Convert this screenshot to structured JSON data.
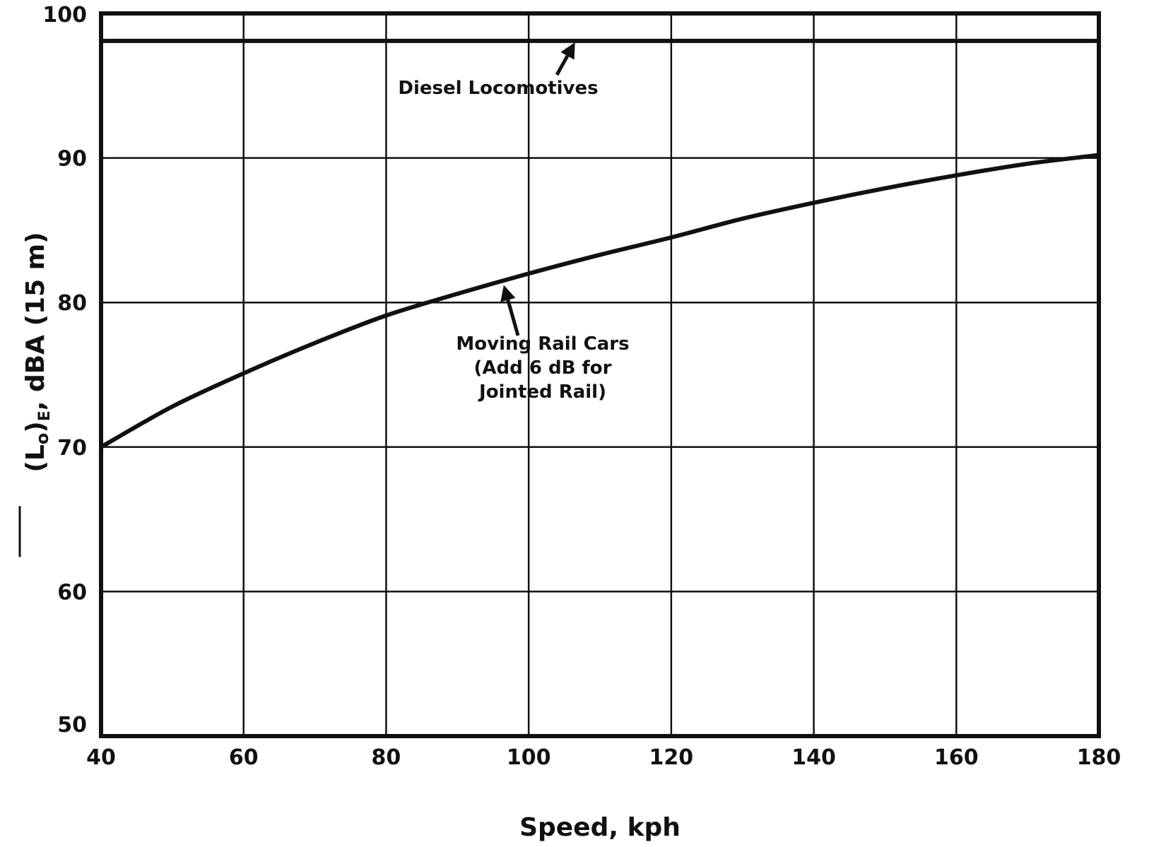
{
  "chart_data": {
    "type": "line",
    "xlabel": "Speed, kph",
    "ylabel": "(Lo)E, dBA (15 m)",
    "ylabel_parts": {
      "main": "(L",
      "sub_o": "o",
      "close": ")",
      "sub_e": "E",
      "rest": ", dBA (15 m)"
    },
    "xlim": [
      40,
      180
    ],
    "ylim": [
      50,
      100
    ],
    "xticks": [
      "40",
      "60",
      "80",
      "100",
      "120",
      "140",
      "160",
      "180"
    ],
    "yticks": [
      "50",
      "60",
      "70",
      "80",
      "90",
      "100"
    ],
    "xtick_values": [
      40,
      60,
      80,
      100,
      120,
      140,
      160,
      180
    ],
    "ytick_values": [
      50,
      60,
      70,
      80,
      90,
      100
    ],
    "grid": true,
    "series": [
      {
        "x": [
          40,
          180
        ],
        "y": [
          98.1,
          98.1
        ]
      },
      {
        "x": [
          40,
          50,
          60,
          70,
          80,
          90,
          100,
          110,
          120,
          130,
          140,
          150,
          160,
          170,
          180
        ],
        "y": [
          70.0,
          72.8,
          75.1,
          77.2,
          79.1,
          80.6,
          82.0,
          83.3,
          84.5,
          85.8,
          86.9,
          87.9,
          88.8,
          89.6,
          90.2
        ]
      }
    ],
    "annotations": [
      {
        "text": "Diesel Locomotives",
        "series_index": 0,
        "arrow_to": {
          "x": 106.5,
          "y": 98.1
        }
      },
      {
        "text": "Moving Rail Cars (Add 6 dB for Jointed Rail)",
        "lines": [
          "Moving Rail Cars",
          "(Add 6 dB for",
          "Jointed Rail)"
        ],
        "series_index": 1,
        "arrow_to": {
          "x": 96.5,
          "y": 81.5
        }
      }
    ]
  }
}
